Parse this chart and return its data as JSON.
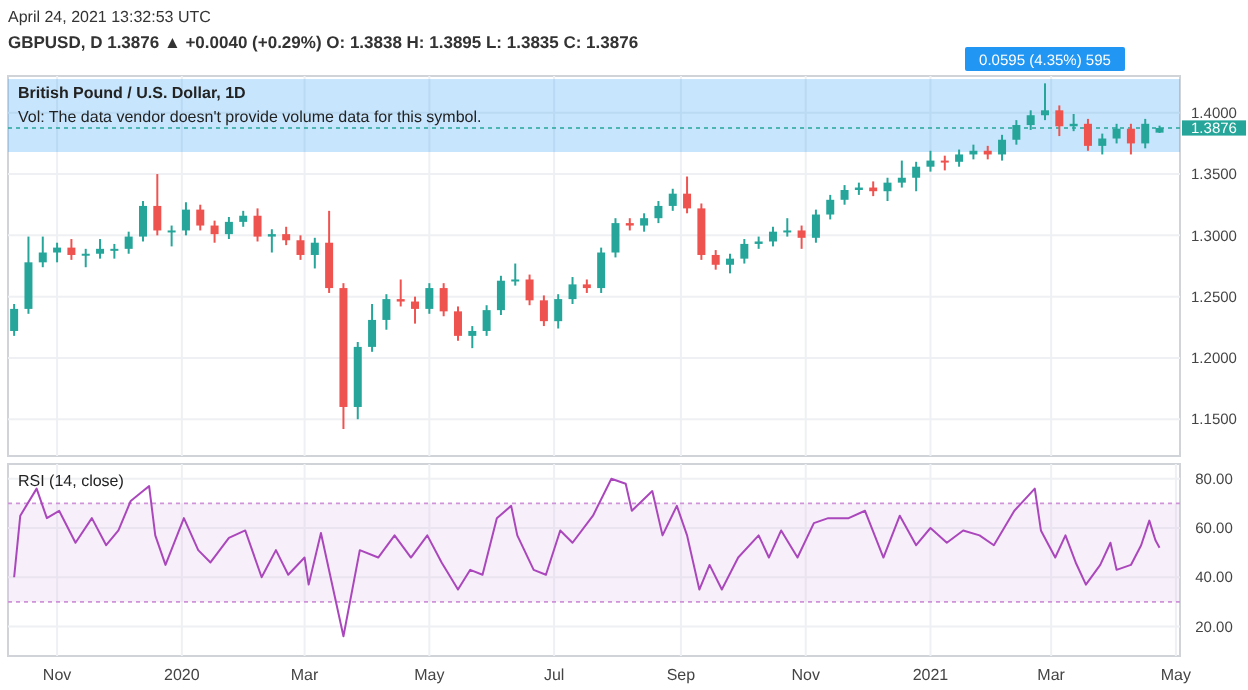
{
  "chart_data": [
    {
      "type": "candlestick",
      "title": "British Pound / U.S. Dollar, 1D",
      "subtitle": "Vol: The data vendor doesn't provide volume data for this symbol.",
      "annotations": [
        "April 24, 2021 13:32:53 UTC",
        "GBPUSD, D 1.3876 ▲ +0.0040 (+0.29%) O: 1.3838 H: 1.3895 L: 1.3835 C: 1.3876",
        {
          "text": "0.0595 (4.35%) 595",
          "x": "2021-02-26",
          "y": 1.4275
        }
      ],
      "x": [
        "2019-10-11",
        "2019-10-18",
        "2019-10-25",
        "2019-11-01",
        "2019-11-08",
        "2019-11-15",
        "2019-11-22",
        "2019-11-29",
        "2019-12-06",
        "2019-12-13",
        "2019-12-20",
        "2019-12-27",
        "2020-01-03",
        "2020-01-10",
        "2020-01-17",
        "2020-01-24",
        "2020-01-31",
        "2020-02-07",
        "2020-02-14",
        "2020-02-21",
        "2020-02-28",
        "2020-03-06",
        "2020-03-13",
        "2020-03-20",
        "2020-03-27",
        "2020-04-03",
        "2020-04-10",
        "2020-04-17",
        "2020-04-24",
        "2020-05-01",
        "2020-05-08",
        "2020-05-15",
        "2020-05-22",
        "2020-05-29",
        "2020-06-05",
        "2020-06-12",
        "2020-06-19",
        "2020-06-26",
        "2020-07-03",
        "2020-07-10",
        "2020-07-17",
        "2020-07-24",
        "2020-07-31",
        "2020-08-07",
        "2020-08-14",
        "2020-08-21",
        "2020-08-28",
        "2020-09-04",
        "2020-09-11",
        "2020-09-18",
        "2020-09-25",
        "2020-10-02",
        "2020-10-09",
        "2020-10-16",
        "2020-10-23",
        "2020-10-30",
        "2020-11-06",
        "2020-11-13",
        "2020-11-20",
        "2020-11-27",
        "2020-12-04",
        "2020-12-11",
        "2020-12-18",
        "2020-12-25",
        "2021-01-01",
        "2021-01-08",
        "2021-01-15",
        "2021-01-22",
        "2021-01-29",
        "2021-02-05",
        "2021-02-12",
        "2021-02-19",
        "2021-02-26",
        "2021-03-05",
        "2021-03-12",
        "2021-03-19",
        "2021-03-26",
        "2021-04-02",
        "2021-04-09",
        "2021-04-16",
        "2021-04-23"
      ],
      "ohlc": [
        [
          1.222,
          1.244,
          1.218,
          1.24
        ],
        [
          1.24,
          1.299,
          1.236,
          1.278
        ],
        [
          1.278,
          1.299,
          1.274,
          1.286
        ],
        [
          1.286,
          1.294,
          1.278,
          1.29
        ],
        [
          1.29,
          1.297,
          1.28,
          1.284
        ],
        [
          1.284,
          1.289,
          1.274,
          1.285
        ],
        [
          1.285,
          1.297,
          1.281,
          1.289
        ],
        [
          1.289,
          1.293,
          1.281,
          1.289
        ],
        [
          1.289,
          1.303,
          1.285,
          1.299
        ],
        [
          1.299,
          1.328,
          1.295,
          1.324
        ],
        [
          1.324,
          1.35,
          1.3,
          1.304
        ],
        [
          1.304,
          1.308,
          1.291,
          1.304
        ],
        [
          1.304,
          1.327,
          1.3,
          1.321
        ],
        [
          1.321,
          1.325,
          1.304,
          1.308
        ],
        [
          1.308,
          1.312,
          1.294,
          1.301
        ],
        [
          1.301,
          1.315,
          1.297,
          1.311
        ],
        [
          1.311,
          1.32,
          1.307,
          1.316
        ],
        [
          1.316,
          1.322,
          1.295,
          1.299
        ],
        [
          1.299,
          1.305,
          1.286,
          1.301
        ],
        [
          1.301,
          1.307,
          1.292,
          1.296
        ],
        [
          1.296,
          1.3,
          1.28,
          1.284
        ],
        [
          1.284,
          1.298,
          1.273,
          1.294
        ],
        [
          1.294,
          1.32,
          1.253,
          1.257
        ],
        [
          1.257,
          1.261,
          1.142,
          1.16
        ],
        [
          1.16,
          1.213,
          1.15,
          1.209
        ],
        [
          1.209,
          1.244,
          1.205,
          1.231
        ],
        [
          1.231,
          1.252,
          1.223,
          1.248
        ],
        [
          1.248,
          1.264,
          1.242,
          1.246
        ],
        [
          1.246,
          1.25,
          1.228,
          1.24
        ],
        [
          1.24,
          1.261,
          1.236,
          1.257
        ],
        [
          1.257,
          1.261,
          1.234,
          1.238
        ],
        [
          1.238,
          1.242,
          1.214,
          1.218
        ],
        [
          1.218,
          1.226,
          1.208,
          1.222
        ],
        [
          1.222,
          1.243,
          1.218,
          1.239
        ],
        [
          1.239,
          1.267,
          1.235,
          1.263
        ],
        [
          1.263,
          1.277,
          1.259,
          1.264
        ],
        [
          1.264,
          1.268,
          1.243,
          1.247
        ],
        [
          1.247,
          1.251,
          1.226,
          1.23
        ],
        [
          1.23,
          1.252,
          1.224,
          1.248
        ],
        [
          1.248,
          1.266,
          1.244,
          1.26
        ],
        [
          1.26,
          1.264,
          1.253,
          1.257
        ],
        [
          1.257,
          1.29,
          1.253,
          1.286
        ],
        [
          1.286,
          1.314,
          1.282,
          1.31
        ],
        [
          1.31,
          1.314,
          1.304,
          1.308
        ],
        [
          1.308,
          1.318,
          1.303,
          1.314
        ],
        [
          1.314,
          1.328,
          1.31,
          1.324
        ],
        [
          1.324,
          1.338,
          1.32,
          1.334
        ],
        [
          1.334,
          1.348,
          1.318,
          1.322
        ],
        [
          1.322,
          1.326,
          1.28,
          1.284
        ],
        [
          1.284,
          1.288,
          1.272,
          1.276
        ],
        [
          1.276,
          1.285,
          1.269,
          1.281
        ],
        [
          1.281,
          1.297,
          1.277,
          1.293
        ],
        [
          1.293,
          1.299,
          1.289,
          1.295
        ],
        [
          1.295,
          1.307,
          1.291,
          1.303
        ],
        [
          1.303,
          1.314,
          1.299,
          1.304
        ],
        [
          1.304,
          1.308,
          1.289,
          1.298
        ],
        [
          1.298,
          1.321,
          1.294,
          1.317
        ],
        [
          1.317,
          1.333,
          1.313,
          1.329
        ],
        [
          1.329,
          1.341,
          1.325,
          1.337
        ],
        [
          1.337,
          1.343,
          1.333,
          1.339
        ],
        [
          1.339,
          1.344,
          1.332,
          1.336
        ],
        [
          1.336,
          1.347,
          1.328,
          1.343
        ],
        [
          1.343,
          1.361,
          1.339,
          1.347
        ],
        [
          1.347,
          1.36,
          1.336,
          1.356
        ],
        [
          1.356,
          1.369,
          1.352,
          1.361
        ],
        [
          1.361,
          1.365,
          1.353,
          1.36
        ],
        [
          1.36,
          1.37,
          1.356,
          1.366
        ],
        [
          1.366,
          1.374,
          1.362,
          1.369
        ],
        [
          1.369,
          1.373,
          1.362,
          1.366
        ],
        [
          1.366,
          1.382,
          1.361,
          1.378
        ],
        [
          1.378,
          1.394,
          1.374,
          1.39
        ],
        [
          1.39,
          1.402,
          1.386,
          1.398
        ],
        [
          1.398,
          1.424,
          1.394,
          1.402
        ],
        [
          1.402,
          1.406,
          1.381,
          1.389
        ],
        [
          1.389,
          1.399,
          1.385,
          1.391
        ],
        [
          1.391,
          1.395,
          1.369,
          1.373
        ],
        [
          1.373,
          1.383,
          1.366,
          1.379
        ],
        [
          1.379,
          1.391,
          1.375,
          1.387
        ],
        [
          1.387,
          1.391,
          1.366,
          1.375
        ],
        [
          1.375,
          1.395,
          1.371,
          1.391
        ],
        [
          1.3838,
          1.3895,
          1.3835,
          1.3876
        ]
      ],
      "xlim": [
        "2019-10-08",
        "2021-05-03"
      ],
      "xticks": [
        {
          "value": "2019-11-01",
          "label": null
        },
        {
          "value": "2020-01-01",
          "label": null
        },
        {
          "value": "2020-03-01",
          "label": null
        },
        {
          "value": "2020-05-01",
          "label": null
        },
        {
          "value": "2020-07-01",
          "label": null
        },
        {
          "value": "2020-09-01",
          "label": null
        },
        {
          "value": "2020-11-01",
          "label": null
        },
        {
          "value": "2021-01-01",
          "label": null
        },
        {
          "value": "2021-03-01",
          "label": null
        }
      ],
      "ylim": [
        1.12,
        1.43
      ],
      "yticks": [
        {
          "value": 1.15,
          "label": "1.1500"
        },
        {
          "value": 1.2,
          "label": "1.2000"
        },
        {
          "value": 1.25,
          "label": "1.2500"
        },
        {
          "value": 1.3,
          "label": "1.3000"
        },
        {
          "value": 1.35,
          "label": "1.3500"
        },
        {
          "value": 1.4,
          "label": "1.4000"
        }
      ],
      "ref_lines": [
        {
          "axis": "y",
          "value": 1.3876,
          "label": "1.3876",
          "color": "#26a69a",
          "line_style": "dashed"
        }
      ],
      "bands": [
        {
          "axis": "y",
          "from": 1.368,
          "to": 1.4275,
          "color": "#2196f3"
        }
      ],
      "grid": true,
      "tick_labels": "y"
    },
    {
      "type": "line",
      "title": "RSI (14, close)",
      "series": [
        {
          "color": "#ab47bc",
          "x": [
            "2019-10-11",
            "2019-10-14",
            "2019-10-22",
            "2019-10-27",
            "2019-11-02",
            "2019-11-10",
            "2019-11-18",
            "2019-11-25",
            "2019-12-01",
            "2019-12-07",
            "2019-12-13",
            "2019-12-16",
            "2019-12-19",
            "2019-12-24",
            "2020-01-02",
            "2020-01-09",
            "2020-01-15",
            "2020-01-24",
            "2020-02-01",
            "2020-02-09",
            "2020-02-16",
            "2020-02-22",
            "2020-03-01",
            "2020-03-03",
            "2020-03-09",
            "2020-03-20",
            "2020-03-28",
            "2020-04-06",
            "2020-04-14",
            "2020-04-22",
            "2020-04-30",
            "2020-05-07",
            "2020-05-15",
            "2020-05-21",
            "2020-05-27",
            "2020-06-03",
            "2020-06-10",
            "2020-06-13",
            "2020-06-21",
            "2020-06-27",
            "2020-07-04",
            "2020-07-10",
            "2020-07-20",
            "2020-07-29",
            "2020-08-05",
            "2020-08-08",
            "2020-08-18",
            "2020-08-23",
            "2020-08-30",
            "2020-09-04",
            "2020-09-10",
            "2020-09-15",
            "2020-09-21",
            "2020-09-29",
            "2020-10-09",
            "2020-10-14",
            "2020-10-20",
            "2020-10-28",
            "2020-11-05",
            "2020-11-12",
            "2020-11-22",
            "2020-11-30",
            "2020-12-09",
            "2020-12-17",
            "2020-12-25",
            "2021-01-01",
            "2021-01-09",
            "2021-01-17",
            "2021-01-25",
            "2021-02-01",
            "2021-02-11",
            "2021-02-21",
            "2021-02-24",
            "2021-03-03",
            "2021-03-08",
            "2021-03-13",
            "2021-03-18",
            "2021-03-25",
            "2021-03-30",
            "2021-04-02",
            "2021-04-09",
            "2021-04-14",
            "2021-04-18",
            "2021-04-21",
            "2021-04-23"
          ],
          "values": [
            40,
            65,
            76,
            64,
            67,
            54,
            64,
            53,
            59,
            71,
            75,
            77,
            57,
            45,
            64,
            51,
            46,
            56,
            59,
            40,
            51,
            41,
            48,
            37,
            58,
            16,
            51,
            48,
            57,
            48,
            57,
            46,
            35,
            43,
            41,
            64,
            69,
            57,
            43,
            41,
            59,
            54,
            65,
            80,
            78,
            67,
            75,
            57,
            69,
            57,
            35,
            45,
            35,
            48,
            57,
            48,
            59,
            48,
            62,
            64,
            64,
            67,
            48,
            65,
            53,
            60,
            54,
            59,
            57,
            53,
            67,
            76,
            59,
            48,
            57,
            46,
            37,
            45,
            54,
            43,
            45,
            53,
            63,
            55,
            52
          ]
        }
      ],
      "xlim": [
        "2019-10-08",
        "2021-05-03"
      ],
      "xticks": [
        {
          "value": "2019-11-01",
          "label": "Nov"
        },
        {
          "value": "2020-01-01",
          "label": "2020"
        },
        {
          "value": "2020-03-01",
          "label": "Mar"
        },
        {
          "value": "2020-05-01",
          "label": "May"
        },
        {
          "value": "2020-07-01",
          "label": "Jul"
        },
        {
          "value": "2020-09-01",
          "label": "Sep"
        },
        {
          "value": "2020-11-01",
          "label": "Nov"
        },
        {
          "value": "2021-01-01",
          "label": "2021"
        },
        {
          "value": "2021-03-01",
          "label": "Mar"
        },
        {
          "value": "2021-05-01",
          "label": "May"
        }
      ],
      "ylim": [
        8,
        86
      ],
      "yticks": [
        {
          "value": 20,
          "label": "20.00"
        },
        {
          "value": 40,
          "label": "40.00"
        },
        {
          "value": 60,
          "label": "60.00"
        },
        {
          "value": 80,
          "label": "80.00"
        }
      ],
      "bands": [
        {
          "axis": "y",
          "from": 30,
          "to": 70,
          "color": "#e1bee7"
        }
      ],
      "ref_lines": [
        {
          "axis": "y",
          "value": 70,
          "color": "#ce93d8",
          "line_style": "dashed"
        },
        {
          "axis": "y",
          "value": 30,
          "color": "#ce93d8",
          "line_style": "dashed"
        }
      ],
      "grid": true
    }
  ]
}
